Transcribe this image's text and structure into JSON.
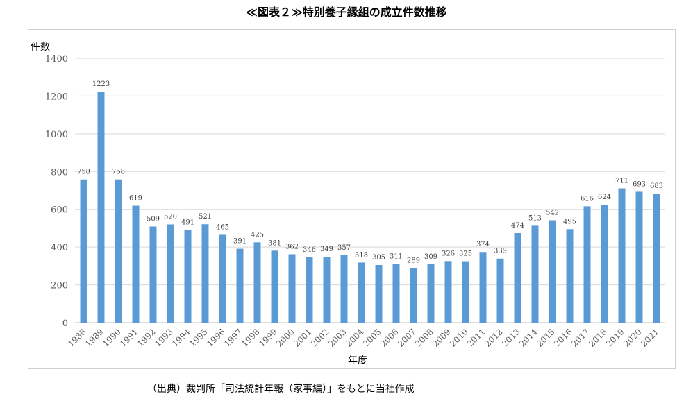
{
  "title": "≪図表２≫特別養子縁組の成立件数推移",
  "source": "（出典）裁判所「司法統計年報（家事編）」をもとに当社作成",
  "chart_data": {
    "type": "bar",
    "title": "≪図表２≫特別養子縁組の成立件数推移",
    "ylabel": "件数",
    "xlabel": "年度",
    "ylim": [
      0,
      1400
    ],
    "yticks": [
      "0",
      "200",
      "400",
      "600",
      "800",
      "1000",
      "1200",
      "1400"
    ],
    "grid": true,
    "bar_color": "#5B9BD5",
    "categories": [
      "1988",
      "1989",
      "1990",
      "1991",
      "1992",
      "1993",
      "1994",
      "1995",
      "1996",
      "1997",
      "1998",
      "1999",
      "2000",
      "2001",
      "2002",
      "2003",
      "2004",
      "2005",
      "2006",
      "2007",
      "2008",
      "2009",
      "2010",
      "2011",
      "2012",
      "2013",
      "2014",
      "2015",
      "2016",
      "2017",
      "2018",
      "2019",
      "2020",
      "2021"
    ],
    "values": [
      758,
      1223,
      758,
      619,
      509,
      520,
      491,
      521,
      465,
      391,
      425,
      381,
      362,
      346,
      349,
      357,
      318,
      305,
      311,
      289,
      309,
      326,
      325,
      374,
      339,
      474,
      513,
      542,
      495,
      616,
      624,
      711,
      693,
      683
    ]
  }
}
